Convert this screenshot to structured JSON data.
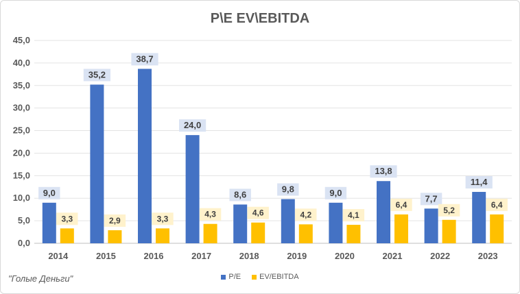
{
  "colors": {
    "pe": "#4472C4",
    "ev": "#FFC000",
    "label_bg": "#DAE3F3",
    "label_bg_ev": "#FFF2CC"
  },
  "source_note": "\"Голые Деньги\"",
  "chart_data": {
    "type": "bar",
    "title": "P\\E EV\\EBITDA",
    "categories": [
      "2014",
      "2015",
      "2016",
      "2017",
      "2018",
      "2019",
      "2020",
      "2021",
      "2022",
      "2023"
    ],
    "series": [
      {
        "name": "P/E",
        "values": [
          9.0,
          35.2,
          38.7,
          24.0,
          8.6,
          9.8,
          9.0,
          13.8,
          7.7,
          11.4
        ],
        "labels": [
          "9,0",
          "35,2",
          "38,7",
          "24,0",
          "8,6",
          "9,8",
          "9,0",
          "13,8",
          "7,7",
          "11,4"
        ]
      },
      {
        "name": "EV/EBITDA",
        "values": [
          3.3,
          2.9,
          3.3,
          4.3,
          4.6,
          4.2,
          4.1,
          6.4,
          5.2,
          6.4
        ],
        "labels": [
          "3,3",
          "2,9",
          "3,3",
          "4,3",
          "4,6",
          "4,2",
          "4,1",
          "6,4",
          "5,2",
          "6,4"
        ]
      }
    ],
    "yticks": [
      "0,0",
      "5,0",
      "10,0",
      "15,0",
      "20,0",
      "25,0",
      "30,0",
      "35,0",
      "40,0",
      "45,0"
    ],
    "ylim": [
      0,
      45
    ],
    "ystep": 5,
    "grid": true,
    "legend": "bottom",
    "xlabel": "",
    "ylabel": ""
  }
}
